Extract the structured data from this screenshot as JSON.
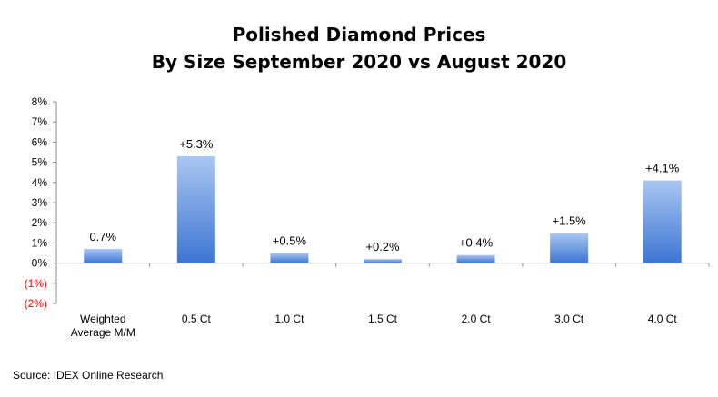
{
  "chart_data": {
    "type": "bar",
    "title": "Polished Diamond Prices",
    "subtitle": "By Size September 2020 vs August 2020",
    "categories": [
      [
        "Weighted",
        "Average M/M"
      ],
      [
        "0.5 Ct"
      ],
      [
        "1.0 Ct"
      ],
      [
        "1.5 Ct"
      ],
      [
        "2.0 Ct"
      ],
      [
        "3.0 Ct"
      ],
      [
        "4.0 Ct"
      ]
    ],
    "values": [
      0.7,
      5.3,
      0.5,
      0.2,
      0.4,
      1.5,
      4.1
    ],
    "data_labels": [
      "0.7%",
      "+5.3%",
      "+0.5%",
      "+0.2%",
      "+0.4%",
      "+1.5%",
      "+4.1%"
    ],
    "ylim": [
      -2,
      8
    ],
    "y_ticks": [
      8,
      7,
      6,
      5,
      4,
      3,
      2,
      1,
      0,
      -1,
      -2
    ],
    "y_tick_labels": [
      "8%",
      "7%",
      "6%",
      "5%",
      "4%",
      "3%",
      "2%",
      "1%",
      "0%",
      "(1%)",
      "(2%)"
    ],
    "grid": false,
    "legend": "none",
    "xlabel": "",
    "ylabel": "",
    "colors": {
      "bar_top": "#a9c7f2",
      "bar_bottom": "#3d75d3",
      "axis": "#8c8c8c",
      "negative_tick": "#ff0000",
      "text": "#000000"
    }
  },
  "source": "Source:  IDEX Online Research"
}
